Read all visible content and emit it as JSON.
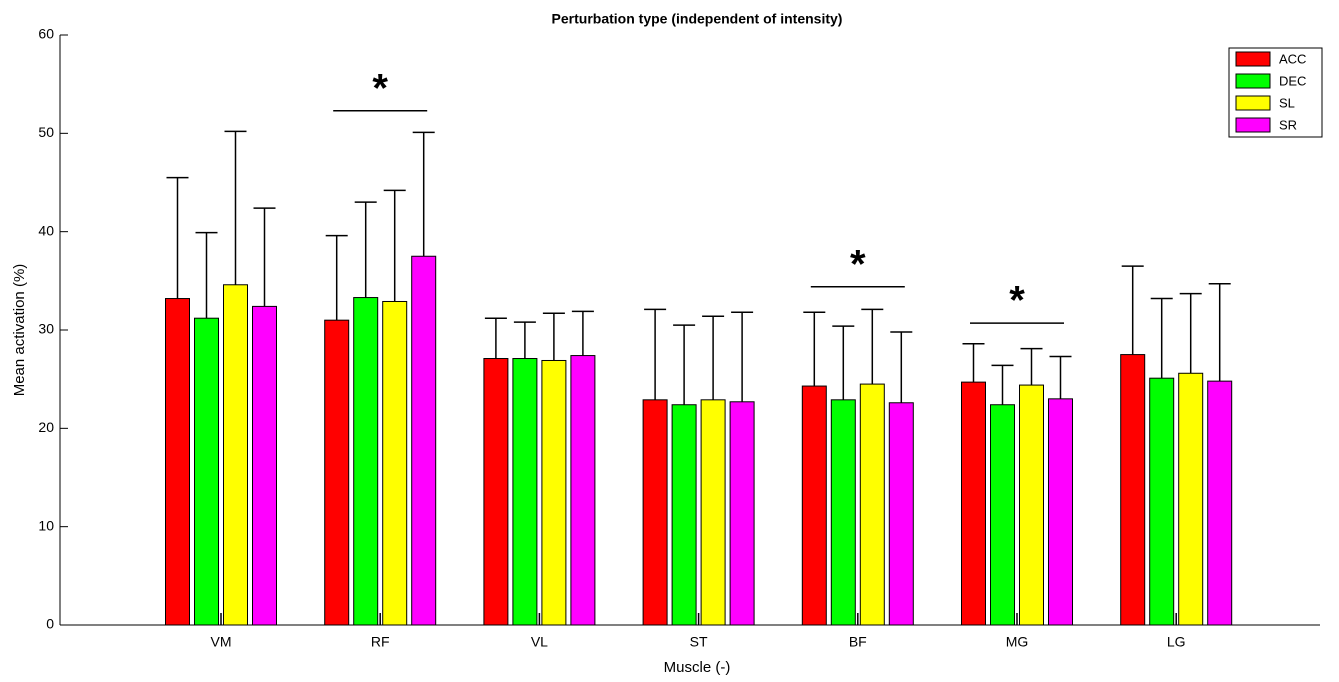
{
  "chart_data": {
    "type": "bar",
    "title": "Perturbation type (independent of intensity)",
    "xlabel": "Muscle (-)",
    "ylabel": "Mean activation (%)",
    "categories": [
      "VM",
      "RF",
      "VL",
      "ST",
      "BF",
      "MG",
      "LG"
    ],
    "series": [
      {
        "name": "ACC",
        "color": "#ff0000",
        "values": [
          33.2,
          31.0,
          27.1,
          22.9,
          24.3,
          24.7,
          27.5
        ],
        "errors": [
          12.3,
          8.6,
          4.1,
          9.2,
          7.5,
          3.9,
          9.0
        ]
      },
      {
        "name": "DEC",
        "color": "#00ff00",
        "values": [
          31.2,
          33.3,
          27.1,
          22.4,
          22.9,
          22.4,
          25.1
        ],
        "errors": [
          8.7,
          9.7,
          3.7,
          8.1,
          7.5,
          4.0,
          8.1
        ]
      },
      {
        "name": "SL",
        "color": "#ffff00",
        "values": [
          34.6,
          32.9,
          26.9,
          22.9,
          24.5,
          24.4,
          25.6
        ],
        "errors": [
          15.6,
          11.3,
          4.8,
          8.5,
          7.6,
          3.7,
          8.1
        ]
      },
      {
        "name": "SR",
        "color": "#ff00ff",
        "values": [
          32.4,
          37.5,
          27.4,
          22.7,
          22.6,
          23.0,
          24.8
        ],
        "errors": [
          10.0,
          12.6,
          4.5,
          9.1,
          7.2,
          4.3,
          9.9
        ]
      }
    ],
    "ylim": [
      0,
      60
    ],
    "yticks": [
      0,
      10,
      20,
      30,
      40,
      50,
      60
    ],
    "legend": "upper right",
    "annotations": [
      {
        "text": "*",
        "category": "RF",
        "y": 52.3
      },
      {
        "text": "*",
        "category": "BF",
        "y": 34.4
      },
      {
        "text": "*",
        "category": "MG",
        "y": 30.7
      }
    ]
  }
}
